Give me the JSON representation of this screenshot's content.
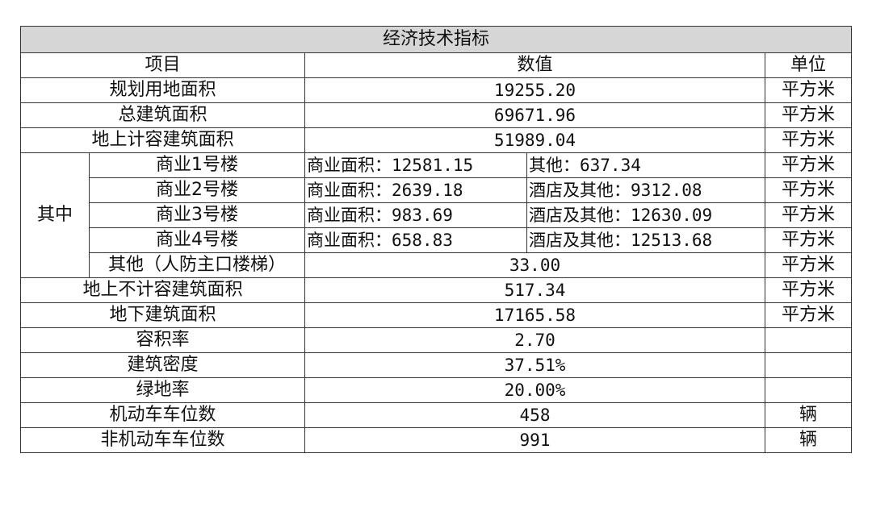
{
  "title": "经济技术指标",
  "headers": {
    "item": "项目",
    "value": "数值",
    "unit": "单位"
  },
  "rows": [
    {
      "item": "规划用地面积",
      "value": "19255.20",
      "unit": "平方米"
    },
    {
      "item": "总建筑面积",
      "value": "69671.96",
      "unit": "平方米"
    },
    {
      "item": "地上计容建筑面积",
      "value": "51989.04",
      "unit": "平方米"
    }
  ],
  "group": {
    "label": "其中",
    "buildings": [
      {
        "item": "商业1号楼",
        "commercial": "商业面积：12581.15",
        "other": "其他：637.34",
        "unit": "平方米"
      },
      {
        "item": "商业2号楼",
        "commercial": "商业面积：2639.18",
        "other": "酒店及其他：9312.08",
        "unit": "平方米"
      },
      {
        "item": "商业3号楼",
        "commercial": "商业面积：983.69",
        "other": "酒店及其他：12630.09",
        "unit": "平方米"
      },
      {
        "item": "商业4号楼",
        "commercial": "商业面积：658.83",
        "other": "酒店及其他：12513.68",
        "unit": "平方米"
      }
    ],
    "other": {
      "item": "其他（人防主口楼梯）",
      "value": "33.00",
      "unit": "平方米"
    }
  },
  "rows2": [
    {
      "item": "地上不计容建筑面积",
      "value": "517.34",
      "unit": "平方米"
    },
    {
      "item": "地下建筑面积",
      "value": "17165.58",
      "unit": "平方米"
    },
    {
      "item": "容积率",
      "value": "2.70",
      "unit": ""
    },
    {
      "item": "建筑密度",
      "value": "37.51%",
      "unit": ""
    },
    {
      "item": "绿地率",
      "value": "20.00%",
      "unit": ""
    },
    {
      "item": "机动车车位数",
      "value": "458",
      "unit": "辆"
    },
    {
      "item": "非机动车车位数",
      "value": "991",
      "unit": "辆"
    }
  ]
}
